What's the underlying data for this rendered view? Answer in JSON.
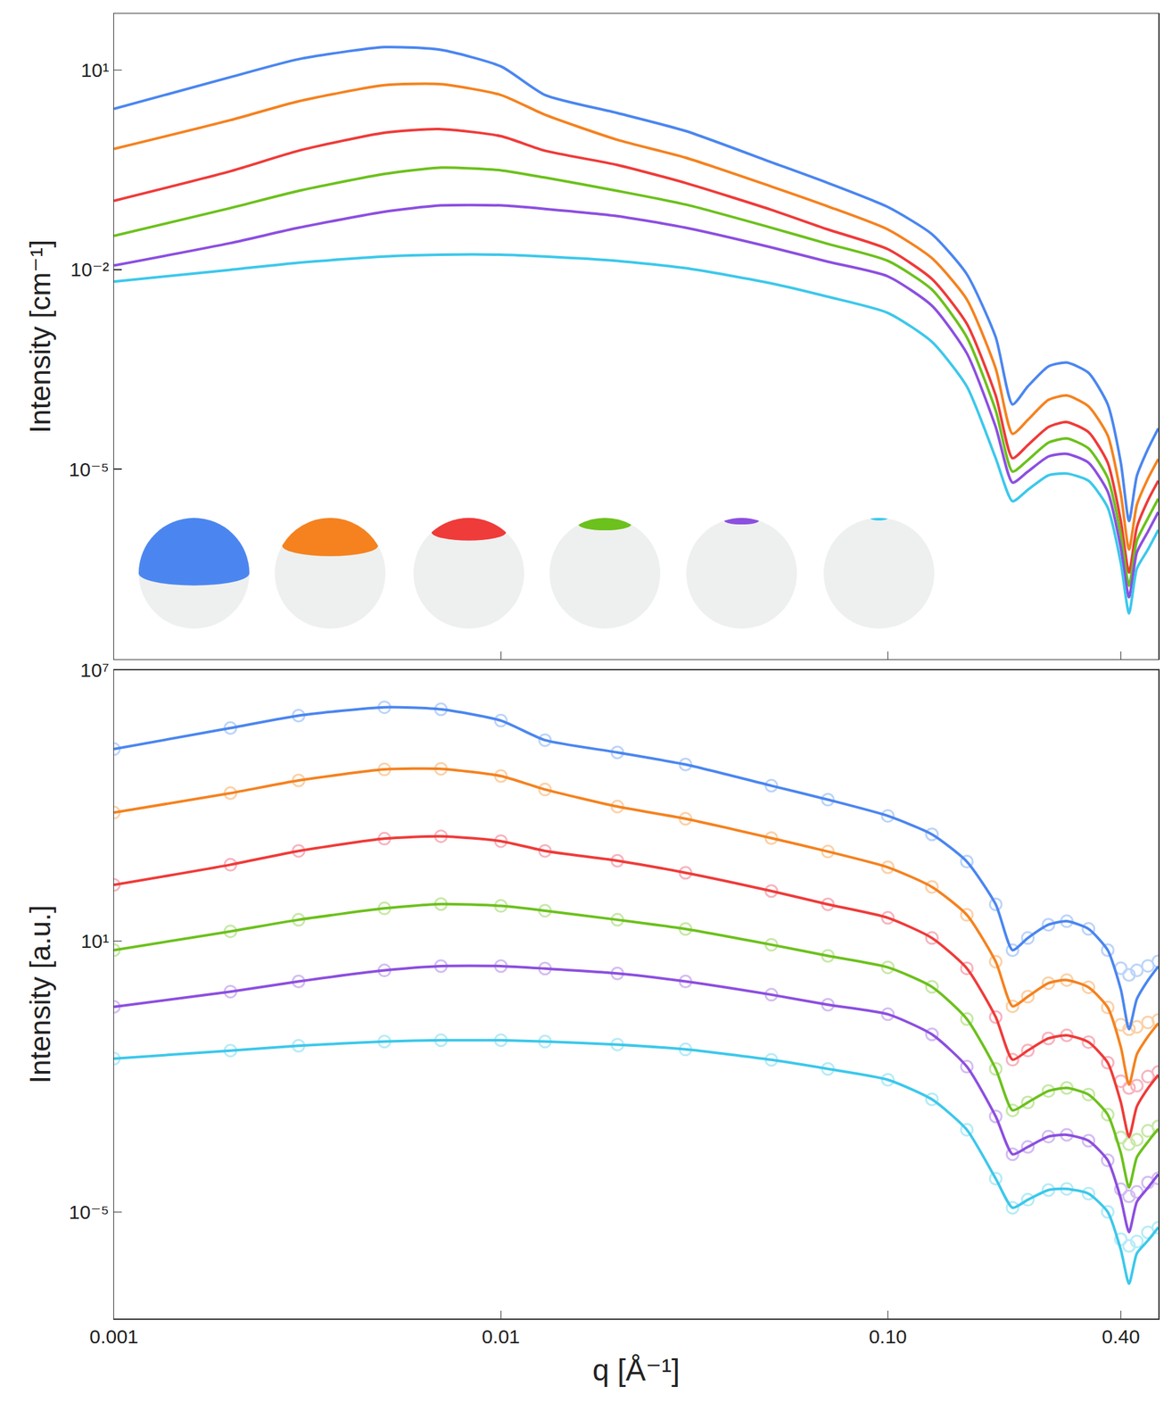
{
  "chart_data": [
    {
      "type": "line",
      "y_label": "Intensity [cm⁻¹]",
      "log": true,
      "tick_labels": "y",
      "x": [
        0.001,
        0.002,
        0.003,
        0.005,
        0.007,
        0.01,
        0.013,
        0.02,
        0.03,
        0.05,
        0.07,
        0.1,
        0.13,
        0.16,
        0.19,
        0.21,
        0.23,
        0.26,
        0.29,
        0.33,
        0.37,
        0.4,
        0.42,
        0.44,
        0.47,
        0.5
      ],
      "xlim": [
        0.001,
        0.5
      ],
      "xticks": [
        0.001,
        0.01,
        {
          "value": 0.1,
          "label": "0.10"
        },
        {
          "value": 0.4,
          "label": "0.40"
        }
      ],
      "ylim": [
        1.4e-08,
        70
      ],
      "yticks": [
        {
          "value": 10,
          "label": "10¹"
        },
        {
          "value": 0.01,
          "label": "10⁻²"
        },
        {
          "value": 1e-05,
          "label": "10⁻⁵"
        }
      ],
      "series": [
        {
          "color": "#4b86f0",
          "line_style": "solid",
          "values": [
            2.6,
            7.8,
            14.5,
            22,
            20,
            11.3,
            4.2,
            2.25,
            1.21,
            0.41,
            0.2,
            0.087,
            0.034,
            0.0085,
            0.00096,
            9.4e-05,
            0.000175,
            0.00035,
            0.0004,
            0.00028,
            9.4e-05,
            1.25e-05,
            1.66e-06,
            7.9e-06,
            2e-05,
            4.1e-05
          ]
        },
        {
          "color": "#f5821f",
          "line_style": "solid",
          "values": [
            0.65,
            1.76,
            3.38,
            5.9,
            6.1,
            4.2,
            2.12,
            0.89,
            0.48,
            0.177,
            0.089,
            0.04,
            0.0148,
            0.00355,
            0.000325,
            3.4e-05,
            5.5e-05,
            0.00011,
            0.000128,
            8.8e-05,
            3.2e-05,
            4.2e-06,
            6.2e-07,
            2.9e-06,
            7.2e-06,
            1.42e-05
          ]
        },
        {
          "color": "#ef3b39",
          "line_style": "solid",
          "values": [
            0.108,
            0.3,
            0.61,
            1.14,
            1.29,
            1.01,
            0.61,
            0.373,
            0.2,
            0.079,
            0.04,
            0.0202,
            0.0072,
            0.00153,
            0.000128,
            1.46e-05,
            2.3e-05,
            4.3e-05,
            5.1e-05,
            3.6e-05,
            1.25e-05,
            1.66e-06,
            2.8e-07,
            1.34e-06,
            3.4e-06,
            6.7e-06
          ]
        },
        {
          "color": "#6cc11c",
          "line_style": "solid",
          "values": [
            0.032,
            0.084,
            0.152,
            0.273,
            0.34,
            0.31,
            0.241,
            0.152,
            0.095,
            0.0425,
            0.0243,
            0.0135,
            0.005,
            0.00096,
            7.6e-05,
            9.2e-06,
            1.37e-05,
            2.5e-05,
            2.9e-05,
            2.05e-05,
            7.4e-06,
            1.04e-06,
            1.78e-07,
            8.4e-07,
            1.83e-06,
            3.6e-06
          ]
        },
        {
          "color": "#8c4fe0",
          "line_style": "solid",
          "values": [
            0.0115,
            0.025,
            0.0425,
            0.074,
            0.092,
            0.092,
            0.0815,
            0.0636,
            0.0425,
            0.0215,
            0.0131,
            0.0079,
            0.00286,
            0.00055,
            4.3e-05,
            6.3e-06,
            9.2e-06,
            1.55e-05,
            1.7e-05,
            1.25e-05,
            4.6e-06,
            6.6e-07,
            1.19e-07,
            5.6e-07,
            1.15e-06,
            2.27e-06
          ]
        },
        {
          "color": "#3cc8eb",
          "line_style": "solid",
          "values": [
            0.0066,
            0.0099,
            0.0127,
            0.0157,
            0.0167,
            0.0167,
            0.0157,
            0.0135,
            0.0105,
            0.0062,
            0.0039,
            0.00223,
            0.00082,
            0.000175,
            1.46e-05,
            3.3e-06,
            4.9e-06,
            8.1e-06,
            8.6e-06,
            6.7e-06,
            2.65e-06,
            3.9e-07,
            6.8e-08,
            3.2e-07,
            6.2e-07,
            1.22e-06
          ]
        }
      ]
    },
    {
      "type": "line",
      "x_label": "q [Å⁻¹]",
      "y_label": "Intensity [a.u.]",
      "log": true,
      "x": [
        0.001,
        0.002,
        0.003,
        0.005,
        0.007,
        0.01,
        0.013,
        0.02,
        0.03,
        0.05,
        0.07,
        0.1,
        0.13,
        0.16,
        0.19,
        0.21,
        0.23,
        0.26,
        0.29,
        0.33,
        0.37,
        0.4,
        0.42,
        0.44,
        0.47,
        0.5
      ],
      "xlim": [
        0.001,
        0.5
      ],
      "xticks": [
        0.001,
        0.01,
        {
          "value": 0.1,
          "label": "0.10"
        },
        {
          "value": 0.4,
          "label": "0.40"
        }
      ],
      "ylim": [
        4.4e-08,
        10000000
      ],
      "yticks": [
        {
          "value": 10000000,
          "label": "10⁷"
        },
        {
          "value": 10,
          "label": "10¹"
        },
        {
          "value": 1e-05,
          "label": "10⁻⁵"
        }
      ],
      "series": [
        {
          "type": "scatter",
          "marker": "circle-open",
          "color": "#bcd4f8",
          "values": [
            178000.0,
            520000.0,
            980000.0,
            1500000.0,
            1350000.0,
            760000.0,
            280000.0,
            150000.0,
            81000.0,
            27500.0,
            13500.0,
            5900.0,
            2300.0,
            575,
            65,
            6.3,
            11.7,
            23,
            27.5,
            18.6,
            6.3,
            2.5,
            1.78,
            2.24,
            2.82,
            3.55
          ]
        },
        {
          "type": "scatter",
          "marker": "circle-open",
          "color": "#fbd1a8",
          "values": [
            6980.0,
            18800.0,
            36000.0,
            63000.0,
            65000.0,
            45000.0,
            22700.0,
            9500.0,
            5100.0,
            1900.0,
            960,
            430,
            158,
            38,
            3.5,
            0.36,
            0.59,
            1.17,
            1.37,
            0.95,
            0.34,
            0.141,
            0.112,
            0.126,
            0.158,
            0.178
          ]
        },
        {
          "type": "scatter",
          "marker": "circle-open",
          "color": "#f7b4bf",
          "values": [
            175,
            490,
            990,
            1850,
            2090,
            1630,
            990,
            600,
            325,
            128,
            65,
            32.7,
            11.7,
            2.49,
            0.208,
            0.0237,
            0.0378,
            0.07,
            0.082,
            0.058,
            0.0203,
            0.0079,
            0.0056,
            0.0063,
            0.01,
            0.0126
          ]
        },
        {
          "type": "scatter",
          "marker": "circle-open",
          "color": "#c8e8a8",
          "values": [
            6.3,
            16.4,
            29.6,
            53,
            66,
            60,
            47,
            29.6,
            18.5,
            8.3,
            4.7,
            2.62,
            0.97,
            0.188,
            0.0148,
            0.00179,
            0.00268,
            0.0048,
            0.0056,
            0.004,
            0.00144,
            0.00045,
            0.00032,
            0.0004,
            0.00063,
            0.00079
          ]
        },
        {
          "type": "scatter",
          "marker": "circle-open",
          "color": "#d3bdf2",
          "values": [
            0.35,
            0.76,
            1.28,
            2.24,
            2.79,
            2.79,
            2.46,
            1.92,
            1.28,
            0.65,
            0.39,
            0.24,
            0.086,
            0.0166,
            0.00131,
            0.000191,
            0.000277,
            0.00047,
            0.000515,
            0.00038,
            0.00014,
            3.2e-05,
            2.24e-05,
            2.8e-05,
            4.5e-05,
            5.6e-05
          ]
        },
        {
          "type": "scatter",
          "marker": "circle-open",
          "color": "#b7ebf7",
          "values": [
            0.025,
            0.0376,
            0.0481,
            0.0598,
            0.0637,
            0.0637,
            0.0598,
            0.0512,
            0.04,
            0.0235,
            0.0148,
            0.0085,
            0.00313,
            0.000665,
            5.5e-05,
            1.25e-05,
            1.88e-05,
            3.08e-05,
            3.27e-05,
            2.56e-05,
            1.01e-05,
            2.5e-06,
            1.78e-06,
            2.24e-06,
            3.55e-06,
            4.5e-06
          ]
        },
        {
          "type": "line",
          "line_style": "solid",
          "color": "#4b86f0",
          "values": [
            178000.0,
            520000.0,
            980000.0,
            1500000.0,
            1350000.0,
            760000.0,
            280000.0,
            150000.0,
            81000.0,
            27500.0,
            13500.0,
            5900.0,
            2300.0,
            575,
            65,
            6.3,
            11.7,
            23,
            27.5,
            18.6,
            6.3,
            0.85,
            0.112,
            0.52,
            1.35,
            2.75
          ]
        },
        {
          "type": "line",
          "line_style": "solid",
          "color": "#f5821f",
          "values": [
            6980.0,
            18800.0,
            36000.0,
            63000.0,
            65000.0,
            45000.0,
            22700.0,
            9500.0,
            5100.0,
            1900.0,
            960,
            430,
            158,
            38,
            3.5,
            0.36,
            0.59,
            1.17,
            1.37,
            0.95,
            0.34,
            0.045,
            0.0066,
            0.031,
            0.077,
            0.152
          ]
        },
        {
          "type": "line",
          "line_style": "solid",
          "color": "#ef3b39",
          "values": [
            175,
            490,
            990,
            1850,
            2090,
            1630,
            990,
            600,
            325,
            128,
            65,
            32.7,
            11.7,
            2.49,
            0.208,
            0.0237,
            0.0378,
            0.07,
            0.082,
            0.058,
            0.0203,
            0.0027,
            0.00046,
            0.00217,
            0.0055,
            0.0109
          ]
        },
        {
          "type": "line",
          "line_style": "solid",
          "color": "#6cc11c",
          "values": [
            6.3,
            16.4,
            29.6,
            53,
            66,
            60,
            47,
            29.6,
            18.5,
            8.3,
            4.7,
            2.62,
            0.97,
            0.188,
            0.0148,
            0.00179,
            0.00268,
            0.0048,
            0.0056,
            0.004,
            0.00144,
            0.000204,
            3.5e-05,
            0.000164,
            0.00036,
            0.0007
          ]
        },
        {
          "type": "line",
          "line_style": "solid",
          "color": "#8c4fe0",
          "values": [
            0.35,
            0.76,
            1.28,
            2.24,
            2.79,
            2.79,
            2.46,
            1.92,
            1.28,
            0.65,
            0.39,
            0.24,
            0.086,
            0.0166,
            0.00131,
            0.000191,
            0.000277,
            0.00047,
            0.000515,
            0.00038,
            0.00014,
            1.98e-05,
            3.6e-06,
            1.69e-05,
            3.46e-05,
            6.9e-05
          ]
        },
        {
          "type": "line",
          "line_style": "solid",
          "color": "#3cc8eb",
          "values": [
            0.025,
            0.0376,
            0.0481,
            0.0598,
            0.0637,
            0.0637,
            0.0598,
            0.0512,
            0.04,
            0.0235,
            0.0148,
            0.0085,
            0.00313,
            0.000665,
            5.5e-05,
            1.25e-05,
            1.88e-05,
            3.08e-05,
            3.27e-05,
            2.56e-05,
            1.01e-05,
            1.47e-06,
            2.59e-07,
            1.22e-06,
            2.34e-06,
            4.6e-06
          ]
        }
      ]
    }
  ]
}
